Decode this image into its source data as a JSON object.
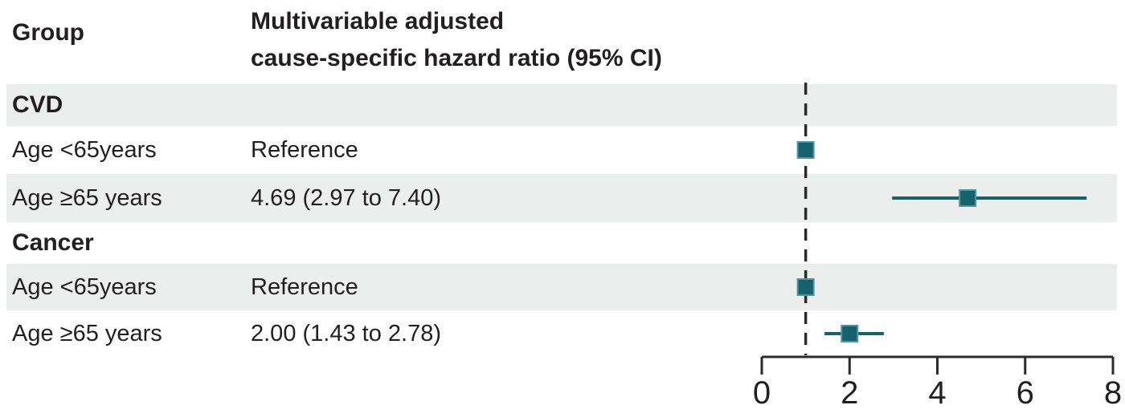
{
  "header": {
    "group_col": "Group",
    "estimate_col_line1": "Multivariable adjusted",
    "estimate_col_line2": "cause-specific hazard ratio (95% CI)"
  },
  "colors": {
    "marker": "#15616e",
    "marker_edge": "#5195a1",
    "ci_line": "#15616e",
    "band": "#ebeeec",
    "axis": "#2b2b2b",
    "text": "#231f20"
  },
  "chart_data": {
    "type": "scatter",
    "variant": "forest-plot",
    "title": "Multivariable adjusted cause-specific hazard ratio (95% CI)",
    "xlabel": "",
    "ylabel": "",
    "xlim": [
      0,
      8
    ],
    "x_ticks": [
      0,
      2,
      4,
      6,
      8
    ],
    "reference_line_x": 1,
    "grid": false,
    "legend": false,
    "rows": [
      {
        "label": "CVD",
        "kind": "group-header",
        "estimate_text": "",
        "shaded": true,
        "point": null,
        "ci_low": null,
        "ci_high": null
      },
      {
        "label": "Age <65years",
        "kind": "data",
        "estimate_text": "Reference",
        "shaded": false,
        "point": 1.0,
        "ci_low": null,
        "ci_high": null
      },
      {
        "label": "Age ≥65 years",
        "kind": "data",
        "estimate_text": "4.69 (2.97 to 7.40)",
        "shaded": true,
        "point": 4.69,
        "ci_low": 2.97,
        "ci_high": 7.4
      },
      {
        "label": "Cancer",
        "kind": "group-header",
        "estimate_text": "",
        "shaded": false,
        "point": null,
        "ci_low": null,
        "ci_high": null
      },
      {
        "label": "Age <65years",
        "kind": "data",
        "estimate_text": "Reference",
        "shaded": true,
        "point": 1.0,
        "ci_low": null,
        "ci_high": null
      },
      {
        "label": "Age ≥65 years",
        "kind": "data",
        "estimate_text": "2.00 (1.43 to 2.78)",
        "shaded": false,
        "point": 2.0,
        "ci_low": 1.43,
        "ci_high": 2.78
      }
    ]
  }
}
